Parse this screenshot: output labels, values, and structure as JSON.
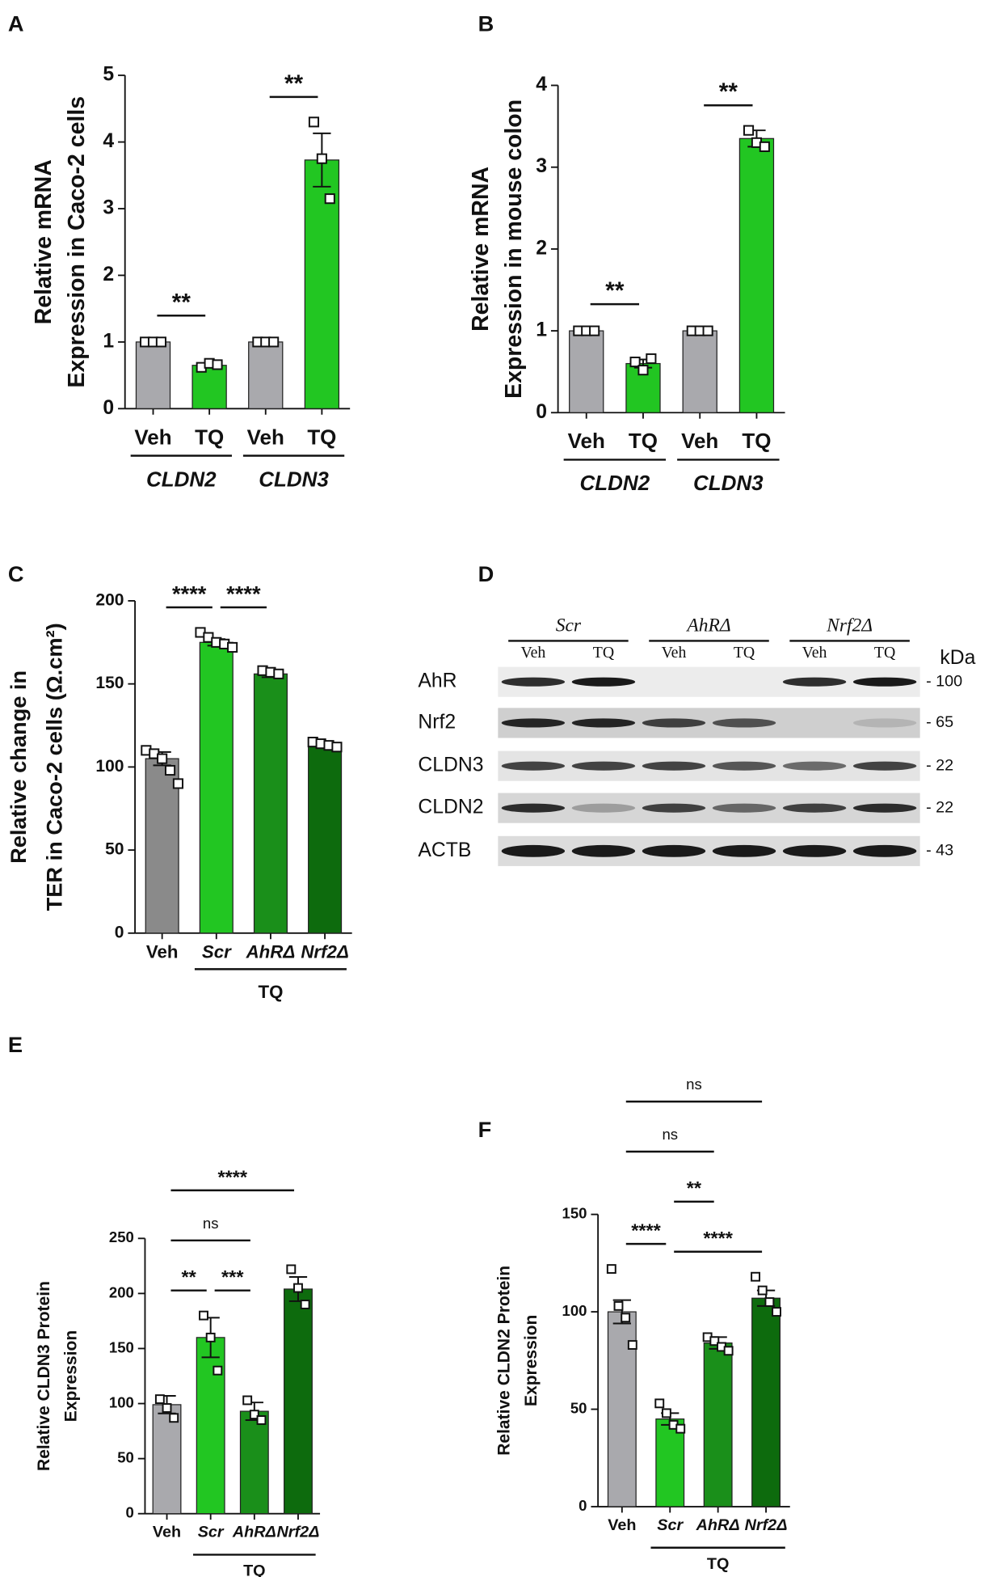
{
  "chart_data": [
    {
      "type": "bar",
      "letter": "A",
      "ylabel": [
        "Relative mRNA",
        "Expression in Caco-2 cells"
      ],
      "categories": [
        "Veh",
        "TQ",
        "Veh",
        "TQ"
      ],
      "italic_categories": [
        false,
        false,
        false,
        false
      ],
      "values": [
        1,
        0.65,
        1,
        3.73
      ],
      "errors": [
        0.02,
        0.03,
        0.02,
        0.4
      ],
      "points": [
        [
          1,
          1,
          1
        ],
        [
          0.62,
          0.68,
          0.66
        ],
        [
          1,
          1,
          1
        ],
        [
          4.3,
          3.75,
          3.15
        ]
      ],
      "colors": [
        "#a9a9ad",
        "#22c622",
        "#a9a9ad",
        "#22c622"
      ],
      "ylim": [
        0,
        5
      ],
      "yticks": [
        0,
        1,
        2,
        3,
        4,
        5
      ],
      "groups": [
        {
          "label": "CLDN2",
          "bars": [
            0,
            1
          ]
        },
        {
          "label": "CLDN3",
          "bars": [
            2,
            3
          ]
        }
      ],
      "group_italic": true,
      "comparisons": [
        {
          "label": "**",
          "bars": [
            0,
            1
          ]
        },
        {
          "label": "**",
          "bars": [
            2,
            3
          ]
        }
      ]
    },
    {
      "type": "bar",
      "letter": "B",
      "ylabel": [
        "Relative mRNA",
        "Expression in mouse colon"
      ],
      "categories": [
        "Veh",
        "TQ",
        "Veh",
        "TQ"
      ],
      "italic_categories": [
        false,
        false,
        false,
        false
      ],
      "values": [
        1,
        0.6,
        1,
        3.35
      ],
      "errors": [
        0.02,
        0.05,
        0.02,
        0.1
      ],
      "points": [
        [
          1,
          1,
          1
        ],
        [
          0.62,
          0.52,
          0.66
        ],
        [
          1,
          1,
          1
        ],
        [
          3.45,
          3.3,
          3.25
        ]
      ],
      "colors": [
        "#a9a9ad",
        "#22c622",
        "#a9a9ad",
        "#22c622"
      ],
      "ylim": [
        0,
        4
      ],
      "yticks": [
        0,
        1,
        2,
        3,
        4
      ],
      "groups": [
        {
          "label": "CLDN2",
          "bars": [
            0,
            1
          ]
        },
        {
          "label": "CLDN3",
          "bars": [
            2,
            3
          ]
        }
      ],
      "group_italic": true,
      "comparisons": [
        {
          "label": "**",
          "bars": [
            0,
            1
          ]
        },
        {
          "label": "**",
          "bars": [
            2,
            3
          ]
        }
      ]
    },
    {
      "type": "bar",
      "letter": "C",
      "ylabel": [
        "Relative change in",
        "TER in Caco-2 cells (Ω.cm²)"
      ],
      "categories": [
        "Veh",
        "Scr",
        "AhRΔ",
        "Nrf2Δ"
      ],
      "italic_categories": [
        false,
        true,
        true,
        true
      ],
      "values": [
        105,
        175,
        156,
        113
      ],
      "errors": [
        4,
        2,
        2,
        1
      ],
      "points": [
        [
          110,
          108,
          105,
          98,
          90
        ],
        [
          181,
          178,
          175,
          174,
          172
        ],
        [
          158,
          157,
          156
        ],
        [
          115,
          114,
          113,
          112
        ]
      ],
      "colors": [
        "#8a8a8a",
        "#22c622",
        "#1a8f1a",
        "#0d6b0d"
      ],
      "ylim": [
        0,
        200
      ],
      "yticks": [
        0,
        50,
        100,
        150,
        200
      ],
      "groups": [
        {
          "label": "TQ",
          "bars": [
            1,
            3
          ]
        }
      ],
      "group_italic": false,
      "comparisons": [
        {
          "label": "****",
          "bars": [
            0,
            1
          ]
        },
        {
          "label": "****",
          "bars": [
            1,
            2
          ]
        }
      ]
    },
    {
      "type": "blot",
      "letter": "D",
      "groups": [
        "Scr",
        "AhRΔ",
        "Nrf2Δ"
      ],
      "lanes": [
        "Veh",
        "TQ",
        "Veh",
        "TQ",
        "Veh",
        "TQ"
      ],
      "rows": [
        "AhR",
        "Nrf2",
        "CLDN3",
        "CLDN2",
        "ACTB"
      ],
      "unit": "kDa",
      "sizes": [
        "- 100",
        "- 65",
        "- 22",
        "- 22",
        "- 43"
      ]
    },
    {
      "type": "bar",
      "letter": "E",
      "ylabel": [
        "Relative CLDN3 Protein",
        "Expression"
      ],
      "categories": [
        "Veh",
        "Scr",
        "AhRΔ",
        "Nrf2Δ"
      ],
      "italic_categories": [
        false,
        true,
        true,
        true
      ],
      "values": [
        99,
        160,
        93,
        204
      ],
      "errors": [
        8,
        18,
        8,
        11
      ],
      "points": [
        [
          104,
          96,
          87
        ],
        [
          180,
          160,
          130
        ],
        [
          103,
          90,
          85
        ],
        [
          222,
          205,
          190
        ]
      ],
      "colors": [
        "#a9a9ad",
        "#22c622",
        "#1a8f1a",
        "#0d6b0d"
      ],
      "ylim": [
        0,
        250
      ],
      "yticks": [
        0,
        50,
        100,
        150,
        200,
        250
      ],
      "groups": [
        {
          "label": "TQ",
          "bars": [
            1,
            3
          ]
        }
      ],
      "group_italic": false,
      "comparisons": [
        {
          "label": "**",
          "bars": [
            0,
            1
          ]
        },
        {
          "label": "***",
          "bars": [
            1,
            2
          ]
        },
        {
          "label": "ns",
          "bars": [
            0,
            2
          ]
        },
        {
          "label": "****",
          "bars": [
            0,
            3
          ]
        }
      ]
    },
    {
      "type": "bar",
      "letter": "F",
      "ylabel": [
        "Relative CLDN2 Protein",
        "Expression"
      ],
      "categories": [
        "Veh",
        "Scr",
        "AhRΔ",
        "Nrf2Δ"
      ],
      "italic_categories": [
        false,
        true,
        true,
        true
      ],
      "values": [
        100,
        45,
        84,
        107
      ],
      "errors": [
        6,
        3,
        3,
        4
      ],
      "points": [
        [
          122,
          103,
          97,
          83
        ],
        [
          53,
          48,
          42,
          40
        ],
        [
          87,
          85,
          82,
          80
        ],
        [
          118,
          111,
          105,
          100
        ]
      ],
      "colors": [
        "#a9a9ad",
        "#22c622",
        "#1a8f1a",
        "#0d6b0d"
      ],
      "ylim": [
        0,
        150
      ],
      "yticks": [
        0,
        50,
        100,
        150
      ],
      "groups": [
        {
          "label": "TQ",
          "bars": [
            1,
            3
          ]
        }
      ],
      "group_italic": false,
      "comparisons": [
        {
          "label": "****",
          "bars": [
            0,
            1
          ]
        },
        {
          "label": "****",
          "bars": [
            1,
            3
          ]
        },
        {
          "label": "**",
          "bars": [
            1,
            2
          ]
        },
        {
          "label": "ns",
          "bars": [
            0,
            2
          ]
        },
        {
          "label": "ns",
          "bars": [
            0,
            3
          ]
        }
      ]
    }
  ]
}
